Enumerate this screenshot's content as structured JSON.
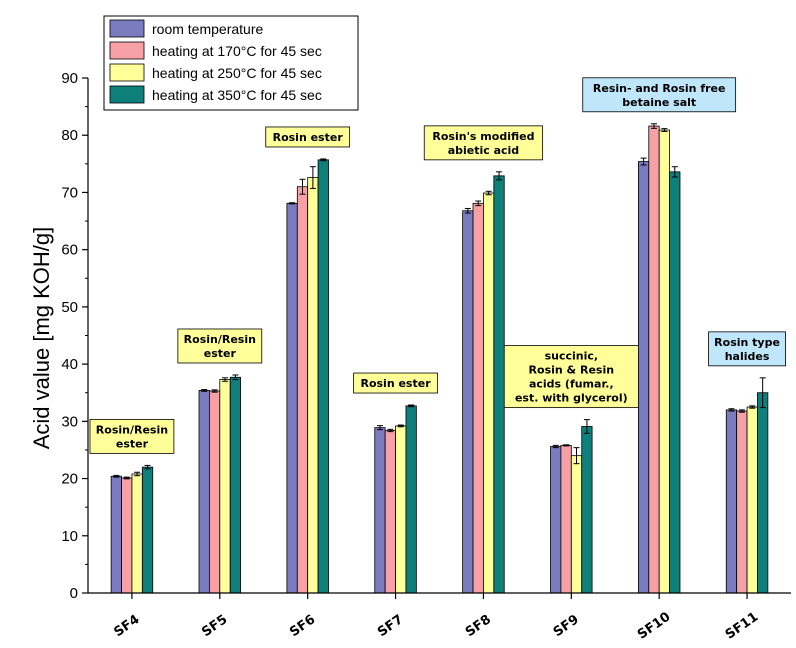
{
  "chart_data": {
    "type": "bar",
    "title": "",
    "xlabel": "",
    "ylabel": "Acid value [mg KOH/g]",
    "ylim": [
      0,
      90
    ],
    "yticks": [
      0,
      10,
      20,
      30,
      40,
      50,
      60,
      70,
      80,
      90
    ],
    "grid": false,
    "legend_position": "top-left",
    "categories": [
      "SF4",
      "SF5",
      "SF6",
      "SF7",
      "SF8",
      "SF9",
      "SF10",
      "SF11"
    ],
    "series": [
      {
        "name": "room temperature",
        "color": "#7B7BC0",
        "values": [
          20.4,
          35.4,
          68.1,
          28.9,
          66.8,
          25.6,
          75.4,
          32.0
        ],
        "errors": [
          0.15,
          0.15,
          0.1,
          0.35,
          0.4,
          0.2,
          0.6,
          0.2
        ]
      },
      {
        "name": "heating at 170°C for 45 sec",
        "color": "#F7A1A6",
        "values": [
          20.1,
          35.3,
          71.0,
          28.4,
          68.1,
          25.8,
          81.6,
          31.8
        ],
        "errors": [
          0.15,
          0.2,
          1.3,
          0.2,
          0.4,
          0.1,
          0.4,
          0.2
        ]
      },
      {
        "name": "heating at 250°C for 45 sec",
        "color": "#FFFF99",
        "values": [
          20.8,
          37.3,
          72.6,
          29.2,
          69.9,
          24.0,
          80.9,
          32.5
        ],
        "errors": [
          0.3,
          0.3,
          1.9,
          0.15,
          0.3,
          1.4,
          0.25,
          0.2
        ]
      },
      {
        "name": "heating at 350°C for 45 sec",
        "color": "#0E7F7B",
        "values": [
          22.0,
          37.7,
          75.7,
          32.7,
          72.9,
          29.1,
          73.6,
          35.0
        ],
        "errors": [
          0.3,
          0.4,
          0.15,
          0.15,
          0.7,
          1.2,
          0.9,
          2.6
        ]
      }
    ],
    "annotations": [
      {
        "category": "SF4",
        "lines": [
          "Rosin/Resin",
          "ester"
        ],
        "bg": "#FFFF99"
      },
      {
        "category": "SF5",
        "lines": [
          "Rosin/Resin",
          "ester"
        ],
        "bg": "#FFFF99"
      },
      {
        "category": "SF6",
        "lines": [
          "Rosin ester"
        ],
        "bg": "#FFFF99"
      },
      {
        "category": "SF7",
        "lines": [
          "Rosin ester"
        ],
        "bg": "#FFFF99"
      },
      {
        "category": "SF8",
        "lines": [
          "Rosin's modified",
          "abietic acid"
        ],
        "bg": "#FFFF99"
      },
      {
        "category": "SF9",
        "lines": [
          "succinic,",
          "Rosin & Resin",
          "acids (fumar.,",
          "est. with glycerol)"
        ],
        "bg": "#FFFF99"
      },
      {
        "category": "SF10",
        "lines": [
          "Resin- and Rosin free",
          "betaine salt"
        ],
        "bg": "#BFE6FA"
      },
      {
        "category": "SF11",
        "lines": [
          "Rosin type",
          "halides"
        ],
        "bg": "#BFE6FA"
      }
    ]
  }
}
